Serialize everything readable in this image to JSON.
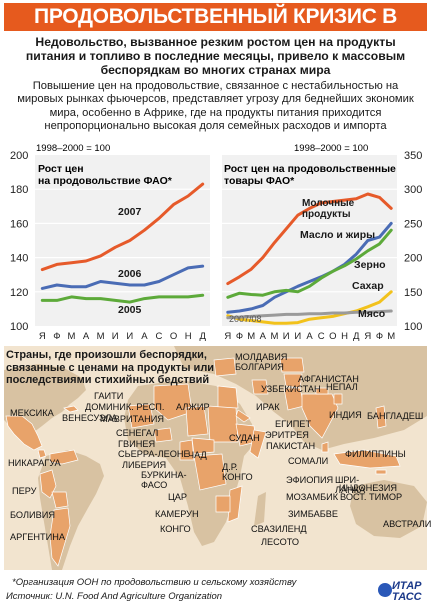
{
  "banner": "ПРОДОВОЛЬСТВЕННЫЙ КРИЗИС В МИРЕ",
  "headline": "Недовольство, вызванное резким ростом цен на продукты питания и топливо в последние месяцы, привело к массовым беспорядкам во многих странах мира",
  "lead": "Повышение цен на продовольствие, связанное с нестабильностью на мировых рынках фьючерсов, представляет угрозу для беднейших экономик мира, особенно в Африке, где на продукты питания приходится непропорционально высокая доля семейных расходов и импорта",
  "chart_data": [
    {
      "type": "line",
      "base_label": "1998–2000 = 100",
      "title": "Рост цен на продовольствие ФАО*",
      "categories": [
        "Я",
        "Ф",
        "М",
        "А",
        "М",
        "И",
        "И",
        "А",
        "С",
        "О",
        "Н",
        "Д"
      ],
      "ylim": [
        100,
        200
      ],
      "yticks": [
        100,
        120,
        140,
        160,
        180,
        200
      ],
      "series": [
        {
          "name": "2007",
          "color": "#e65a2a",
          "values": [
            133,
            136,
            137,
            138,
            141,
            146,
            150,
            156,
            163,
            171,
            176,
            183
          ]
        },
        {
          "name": "2006",
          "color": "#4a6cb5",
          "values": [
            122,
            124,
            123,
            123,
            126,
            125,
            124,
            124,
            126,
            130,
            134,
            135
          ]
        },
        {
          "name": "2005",
          "color": "#5daa3a",
          "values": [
            115,
            115,
            117,
            116,
            116,
            115,
            114,
            116,
            117,
            117,
            117,
            118
          ]
        }
      ]
    },
    {
      "type": "line",
      "base_label": "1998–2000 = 100",
      "title": "Рост цен на продовольственные товары ФАО*",
      "categories": [
        "Я",
        "Ф",
        "М",
        "А",
        "М",
        "И",
        "И",
        "А",
        "С",
        "О",
        "Н",
        "Д",
        "Я",
        "Ф",
        "М"
      ],
      "period_label": "2007/08",
      "ylim": [
        100,
        350
      ],
      "yticks": [
        100,
        150,
        200,
        250,
        300,
        350
      ],
      "series": [
        {
          "name": "Молочные продукты",
          "color": "#e65a2a",
          "values": [
            162,
            172,
            183,
            200,
            222,
            242,
            262,
            272,
            280,
            282,
            284,
            286,
            293,
            288,
            272
          ]
        },
        {
          "name": "Масло и жиры",
          "color": "#4a6cb5",
          "values": [
            120,
            122,
            125,
            130,
            142,
            150,
            158,
            165,
            172,
            180,
            190,
            205,
            225,
            230,
            250
          ]
        },
        {
          "name": "Зерно",
          "color": "#5daa3a",
          "values": [
            142,
            148,
            146,
            145,
            150,
            152,
            150,
            158,
            170,
            180,
            188,
            198,
            210,
            220,
            240
          ]
        },
        {
          "name": "Сахар",
          "color": "#f2c21c",
          "values": [
            115,
            110,
            108,
            106,
            104,
            104,
            105,
            110,
            112,
            114,
            118,
            122,
            128,
            135,
            150
          ]
        },
        {
          "name": "Мясо",
          "color": "#9a9a9a",
          "values": [
            112,
            113,
            114,
            115,
            116,
            117,
            117,
            118,
            118,
            119,
            119,
            120,
            120,
            121,
            122
          ]
        }
      ]
    }
  ],
  "map": {
    "title": "Страны, где произошли беспорядки, связанные с ценами на продукты или последствиями стихийных бедствий",
    "labels": [
      {
        "id": "moldova",
        "text": "МОЛДАВИЯ"
      },
      {
        "id": "bulgaria",
        "text": "БОЛГАРИЯ"
      },
      {
        "id": "afghanistan",
        "text": "АФГАНИСТАН"
      },
      {
        "id": "uzbekistan",
        "text": "УЗБЕКИСТАН"
      },
      {
        "id": "nepal",
        "text": "НЕПАЛ"
      },
      {
        "id": "haiti",
        "text": "ГАИТИ"
      },
      {
        "id": "dominican",
        "text": "ДОМИНИК. РЕСП."
      },
      {
        "id": "mexico",
        "text": "МЕКСИКА"
      },
      {
        "id": "venezuela",
        "text": "ВЕНЕСУЭЛА"
      },
      {
        "id": "mauritania",
        "text": "МАВРИТАНИЯ"
      },
      {
        "id": "senegal",
        "text": "СЕНЕГАЛ"
      },
      {
        "id": "guinea",
        "text": "ГВИНЕЯ"
      },
      {
        "id": "sierra",
        "text": "СЬЕРРА-ЛЕОНЕ"
      },
      {
        "id": "liberia",
        "text": "ЛИБЕРИЯ"
      },
      {
        "id": "algeria",
        "text": "АЛЖИР"
      },
      {
        "id": "iraq",
        "text": "ИРАК"
      },
      {
        "id": "india",
        "text": "ИНДИЯ"
      },
      {
        "id": "bangladesh",
        "text": "БАНГЛАДЕШ"
      },
      {
        "id": "eritrea",
        "text": "ЭРИТРЕЯ"
      },
      {
        "id": "egypt",
        "text": "ЕГИПЕТ"
      },
      {
        "id": "pakistan",
        "text": "ПАКИСТАН"
      },
      {
        "id": "nicaragua",
        "text": "НИКАРАГУА"
      },
      {
        "id": "chad",
        "text": "ЧАД"
      },
      {
        "id": "sudan",
        "text": "СУДАН"
      },
      {
        "id": "somalia",
        "text": "СОМАЛИ"
      },
      {
        "id": "philippines",
        "text": "ФИЛИППИНЫ"
      },
      {
        "id": "srilanka",
        "text": "ШРИ-\nЛАНКА"
      },
      {
        "id": "burkina",
        "text": "БУРКИНА-\nФАСО"
      },
      {
        "id": "drc",
        "text": "Д.Р.\nКОНГО"
      },
      {
        "id": "ethiopia",
        "text": "ЭФИОПИЯ"
      },
      {
        "id": "indonesia",
        "text": "ИНДОНЕЗИЯ"
      },
      {
        "id": "peru",
        "text": "ПЕРУ"
      },
      {
        "id": "car",
        "text": "ЦАР"
      },
      {
        "id": "mozambique",
        "text": "МОЗАМБИК"
      },
      {
        "id": "timor",
        "text": "ВОСТ. ТИМОР"
      },
      {
        "id": "cameroon",
        "text": "КАМЕРУН"
      },
      {
        "id": "zimbabwe",
        "text": "ЗИМБАБВЕ"
      },
      {
        "id": "bolivia",
        "text": "БОЛИВИЯ"
      },
      {
        "id": "congo",
        "text": "КОНГО"
      },
      {
        "id": "swaziland",
        "text": "СВАЗИЛЕНД"
      },
      {
        "id": "australia",
        "text": "АВСТРАЛИЯ"
      },
      {
        "id": "argentina",
        "text": "АРГЕНТИНА"
      },
      {
        "id": "lesotho",
        "text": "ЛЕСОТО"
      }
    ]
  },
  "footnote": "*Организация ООН по продовольствию и сельскому хозяйству",
  "source": "Источник: U.N. Food And Agriculture Organization",
  "logo": {
    "line1": "ИТАР",
    "line2": "ТАСС",
    "color": "#1c3a8a"
  }
}
